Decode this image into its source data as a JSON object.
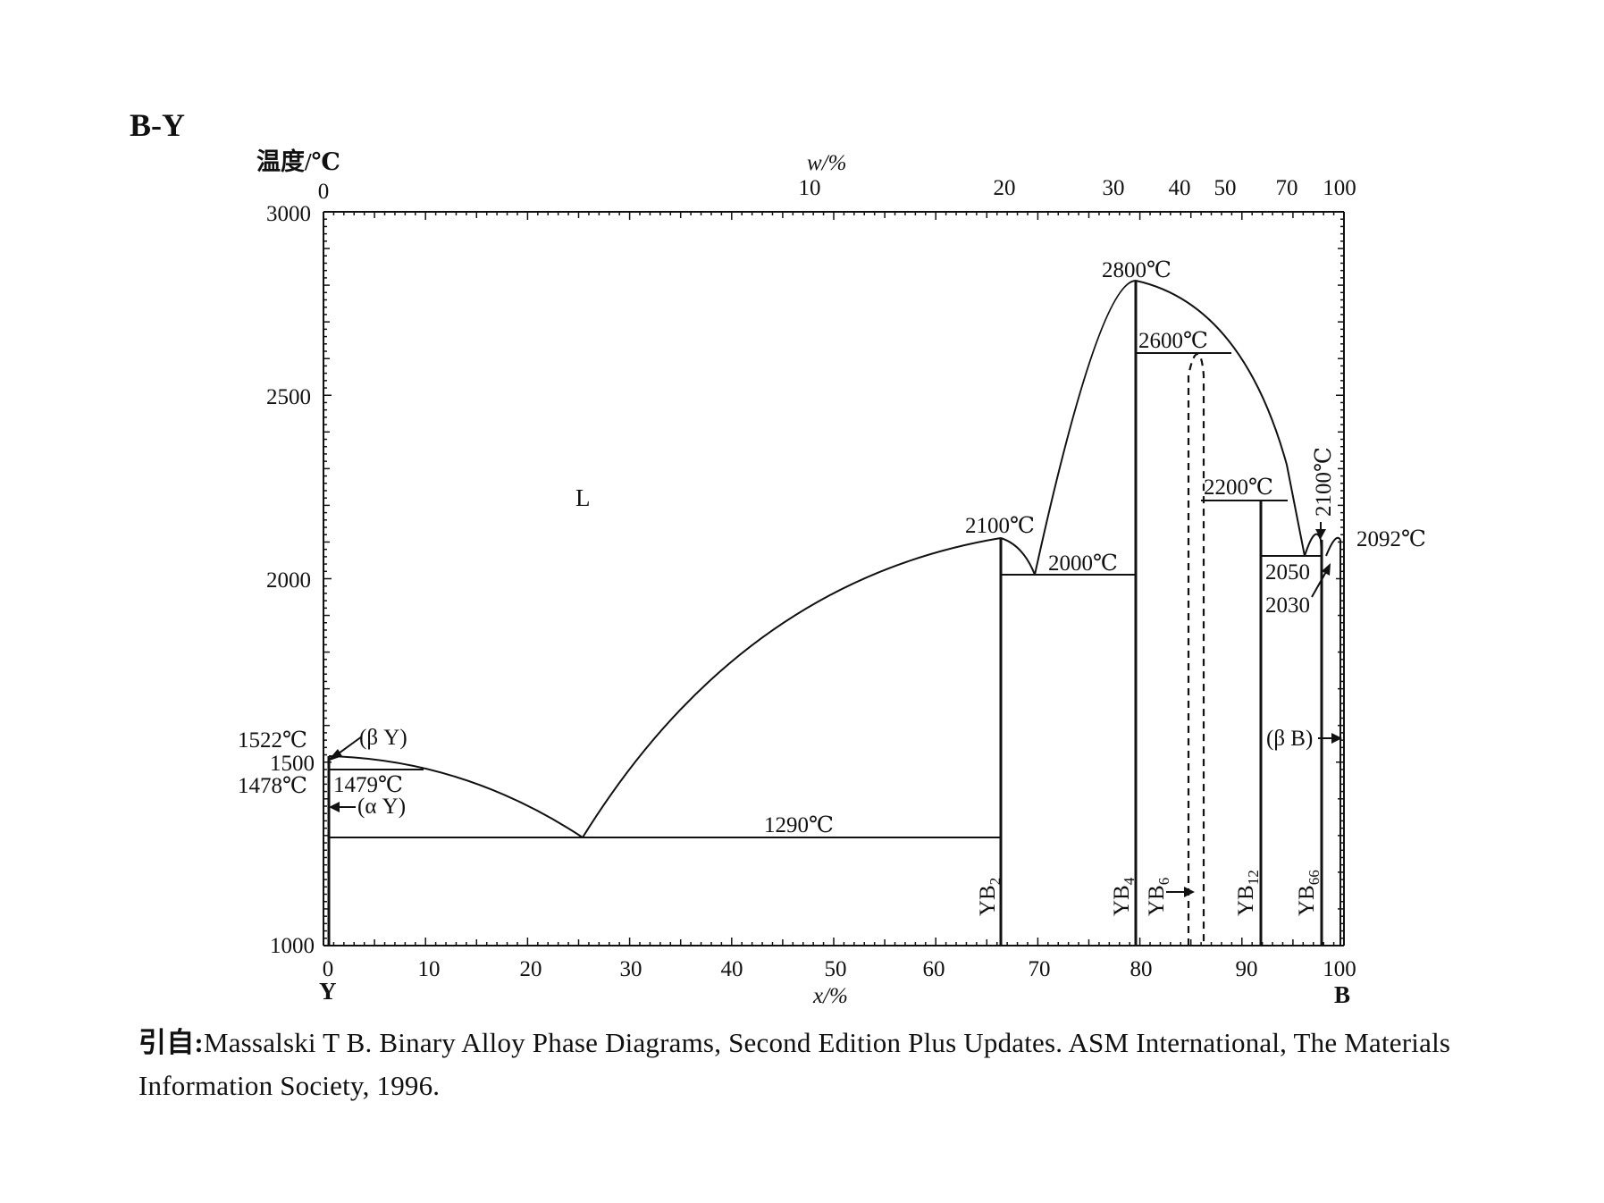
{
  "title": "B-Y",
  "axes": {
    "y_label": "温度/℃",
    "top_label": "w/%",
    "bottom_label": "x/%",
    "y_ticks": [
      "3000",
      "2500",
      "2000",
      "1500",
      "1000"
    ],
    "bottom_ticks": [
      "0",
      "10",
      "20",
      "30",
      "40",
      "50",
      "60",
      "70",
      "80",
      "90",
      "100"
    ],
    "top_ticks": [
      "0",
      "10",
      "20",
      "30",
      "40",
      "50",
      "70",
      "100"
    ],
    "left_element": "Y",
    "right_element": "B"
  },
  "labels": {
    "liquid": "L",
    "t_1522": "1522℃",
    "t_1500": "1500",
    "t_1478": "1478℃",
    "t_1479": "1479℃",
    "beta_y": "(β Y)",
    "alpha_y": "(α Y)",
    "t_1290": "1290℃",
    "t_2100_yb2": "2100℃",
    "t_2000": "2000℃",
    "t_2800": "2800℃",
    "t_2600": "2600℃",
    "t_2200": "2200℃",
    "t_2100_vert": "2100℃",
    "t_2092": "2092℃",
    "t_2050": "2050",
    "t_2030": "2030",
    "beta_b": "(β B)"
  },
  "phases": {
    "yb2": {
      "base": "YB",
      "sub": "2"
    },
    "yb4": {
      "base": "YB",
      "sub": "4"
    },
    "yb6": {
      "base": "YB",
      "sub": "6"
    },
    "yb12": {
      "base": "YB",
      "sub": "12"
    },
    "yb66": {
      "base": "YB",
      "sub": "66"
    }
  },
  "caption": {
    "prefix": "引自:",
    "text": "Massalski T B. Binary Alloy Phase Diagrams, Second Edition Plus Updates. ASM International, The Materials Information Society, 1996."
  }
}
